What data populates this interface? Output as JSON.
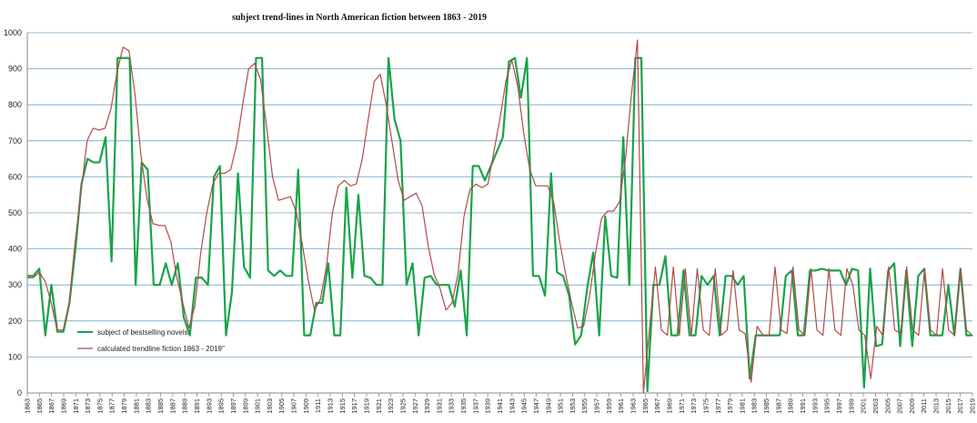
{
  "chart_data": {
    "type": "line",
    "title": "subject trend-lines in North American fiction between 1863 - 2019",
    "xlabel": "",
    "ylabel": "",
    "ylim": [
      0,
      1000
    ],
    "yticks": [
      0,
      100,
      200,
      300,
      400,
      500,
      600,
      700,
      800,
      900,
      1000
    ],
    "grid": "horizontal",
    "legend_position": "bottom-left",
    "x_start": 1863,
    "x_end": 2019,
    "x_tick_labels": [
      "1863",
      "1865",
      "1867",
      "1869",
      "1871",
      "1873",
      "1875",
      "1877",
      "1879",
      "1881",
      "1883",
      "1885",
      "1887",
      "1889",
      "1891",
      "1893",
      "1895",
      "1897",
      "1899",
      "1901",
      "1903",
      "1905",
      "1907",
      "1909",
      "1911",
      "1913",
      "1915",
      "1917",
      "1919",
      "1921",
      "1923",
      "1925",
      "1927",
      "1929",
      "1931",
      "1933",
      "1935",
      "1937",
      "1939",
      "1941",
      "1943",
      "1945",
      "1947",
      "1949",
      "1951",
      "1953",
      "1955",
      "1957",
      "1959",
      "1961",
      "1963",
      "1965",
      "1967",
      "1969",
      "1971",
      "1973",
      "1975",
      "1977",
      "1979",
      "1981",
      "1983",
      "1985",
      "1987",
      "1989",
      "1991",
      "1993",
      "1995",
      "1997",
      "1999",
      "2001",
      "2003",
      "2005",
      "2007",
      "2009",
      "2011",
      "2013",
      "2015",
      "2017",
      "2019"
    ],
    "series": [
      {
        "name": "subject of bestselling novels",
        "color": "#1aa34a",
        "values": [
          325,
          325,
          345,
          160,
          300,
          170,
          170,
          250,
          400,
          580,
          650,
          640,
          640,
          710,
          365,
          930,
          930,
          930,
          300,
          640,
          620,
          300,
          300,
          360,
          300,
          360,
          210,
          160,
          320,
          320,
          300,
          600,
          630,
          160,
          280,
          610,
          350,
          320,
          930,
          930,
          340,
          325,
          340,
          325,
          325,
          620,
          160,
          160,
          250,
          250,
          360,
          160,
          160,
          570,
          320,
          550,
          325,
          320,
          300,
          300,
          930,
          760,
          700,
          300,
          360,
          160,
          320,
          325,
          300,
          300,
          300,
          240,
          340,
          160,
          630,
          630,
          590,
          630,
          670,
          710,
          920,
          930,
          820,
          930,
          325,
          325,
          270,
          610,
          335,
          325,
          270,
          135,
          160,
          290,
          390,
          160,
          490,
          325,
          320,
          710,
          300,
          930,
          930,
          5,
          300,
          300,
          380,
          160,
          160,
          340,
          160,
          160,
          325,
          300,
          325,
          160,
          325,
          325,
          300,
          325,
          40,
          160,
          160,
          160,
          160,
          160,
          325,
          340,
          160,
          160,
          340,
          340,
          345,
          340,
          340,
          340,
          300,
          345,
          340,
          15,
          345,
          130,
          135,
          340,
          360,
          130,
          340,
          130,
          325,
          345,
          160,
          160,
          160,
          300,
          160,
          345,
          160,
          160
        ]
      },
      {
        "name": "calculated trendline fiction 1863 - 2019\"",
        "color": "#b24a4a",
        "values": [
          320,
          320,
          335,
          310,
          250,
          175,
          175,
          250,
          420,
          560,
          700,
          735,
          730,
          735,
          790,
          890,
          960,
          950,
          830,
          660,
          540,
          470,
          465,
          465,
          420,
          320,
          250,
          180,
          240,
          390,
          500,
          580,
          610,
          610,
          620,
          690,
          800,
          900,
          915,
          870,
          740,
          600,
          535,
          540,
          545,
          500,
          410,
          310,
          230,
          260,
          350,
          500,
          575,
          590,
          575,
          580,
          650,
          760,
          865,
          885,
          800,
          695,
          590,
          535,
          545,
          555,
          520,
          410,
          330,
          290,
          230,
          250,
          330,
          490,
          565,
          580,
          570,
          580,
          670,
          760,
          865,
          925,
          850,
          720,
          620,
          575,
          575,
          575,
          530,
          420,
          330,
          250,
          180,
          185,
          270,
          390,
          485,
          505,
          505,
          530,
          650,
          830,
          980,
          0,
          175,
          350,
          175,
          160,
          350,
          160,
          345,
          160,
          345,
          175,
          160,
          345,
          160,
          175,
          340,
          175,
          165,
          30,
          185,
          160,
          160,
          350,
          175,
          165,
          350,
          175,
          160,
          345,
          175,
          160,
          345,
          175,
          160,
          345,
          300,
          175,
          160,
          40,
          185,
          160,
          350,
          175,
          165,
          350,
          175,
          160,
          345,
          175,
          160,
          345,
          175,
          160,
          345,
          175,
          160
        ]
      }
    ]
  }
}
